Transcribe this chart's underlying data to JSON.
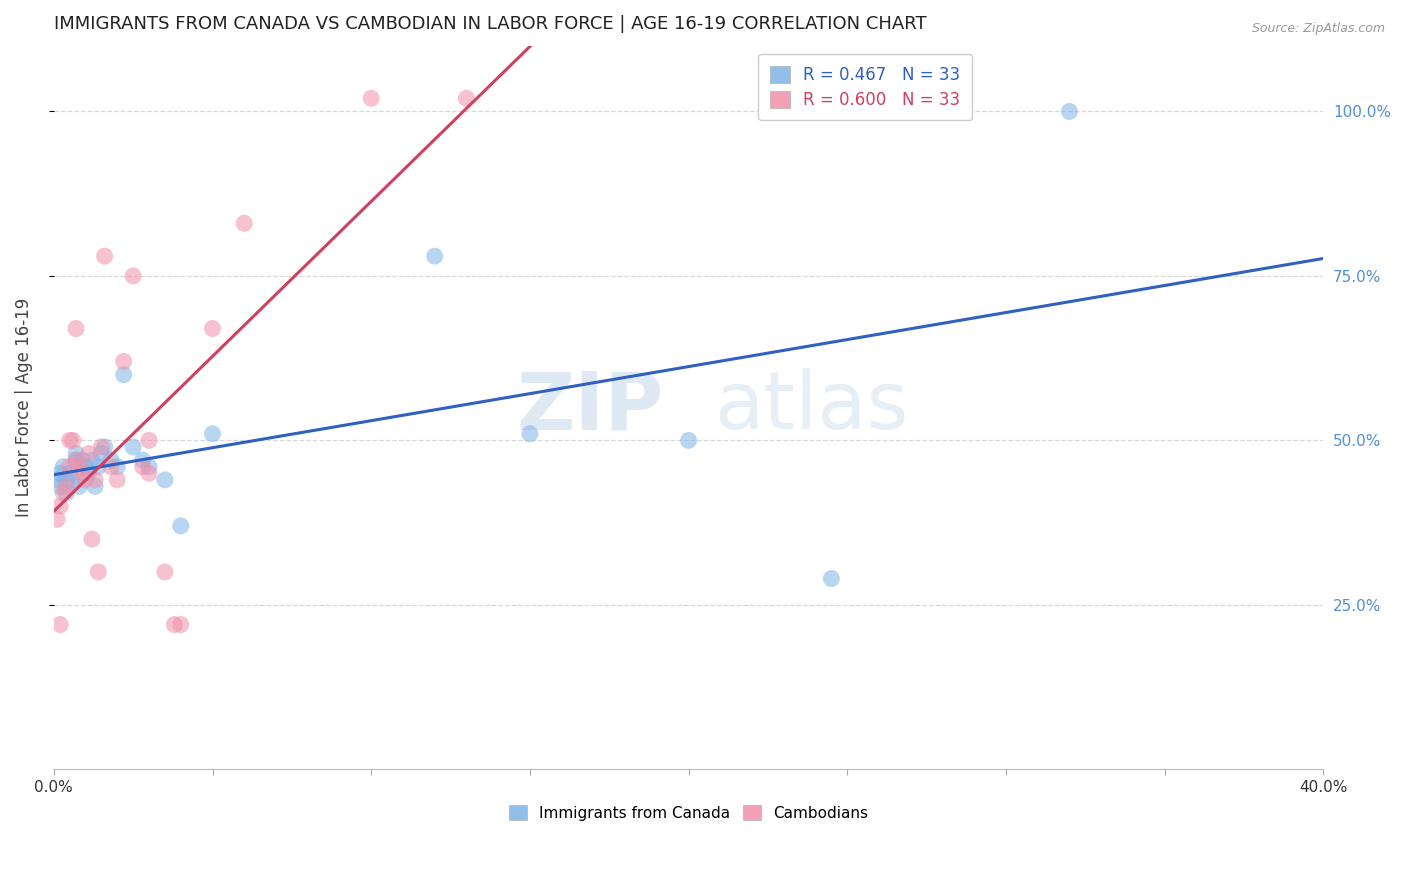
{
  "title": "IMMIGRANTS FROM CANADA VS CAMBODIAN IN LABOR FORCE | AGE 16-19 CORRELATION CHART",
  "source": "Source: ZipAtlas.com",
  "ylabel": "In Labor Force | Age 16-19",
  "xlim": [
    0.0,
    0.4
  ],
  "ylim": [
    0.0,
    1.1
  ],
  "yticks": [
    0.25,
    0.5,
    0.75,
    1.0
  ],
  "ytick_labels": [
    "25.0%",
    "50.0%",
    "75.0%",
    "100.0%"
  ],
  "xticks": [
    0.0,
    0.05,
    0.1,
    0.15,
    0.2,
    0.25,
    0.3,
    0.35,
    0.4
  ],
  "xtick_labels_show": {
    "0.0": "0.0%",
    "0.40": "40.0%"
  },
  "legend_r1": "R = 0.467   N = 33",
  "legend_r2": "R = 0.600   N = 33",
  "watermark": "ZIPatlas",
  "canada_x": [
    0.001,
    0.002,
    0.002,
    0.003,
    0.004,
    0.004,
    0.005,
    0.006,
    0.007,
    0.007,
    0.008,
    0.009,
    0.01,
    0.011,
    0.012,
    0.013,
    0.014,
    0.015,
    0.016,
    0.018,
    0.02,
    0.022,
    0.025,
    0.028,
    0.03,
    0.035,
    0.04,
    0.05,
    0.12,
    0.15,
    0.2,
    0.245,
    0.32
  ],
  "canada_y": [
    0.44,
    0.45,
    0.43,
    0.46,
    0.44,
    0.42,
    0.45,
    0.44,
    0.47,
    0.48,
    0.43,
    0.47,
    0.46,
    0.45,
    0.47,
    0.43,
    0.46,
    0.48,
    0.49,
    0.47,
    0.46,
    0.6,
    0.49,
    0.47,
    0.46,
    0.44,
    0.37,
    0.51,
    0.78,
    0.51,
    0.5,
    0.29,
    1.0
  ],
  "cambodian_x": [
    0.001,
    0.002,
    0.002,
    0.003,
    0.004,
    0.005,
    0.005,
    0.006,
    0.007,
    0.007,
    0.008,
    0.009,
    0.01,
    0.011,
    0.012,
    0.013,
    0.014,
    0.015,
    0.016,
    0.018,
    0.02,
    0.022,
    0.025,
    0.028,
    0.03,
    0.03,
    0.035,
    0.038,
    0.04,
    0.05,
    0.06,
    0.1,
    0.13
  ],
  "cambodian_y": [
    0.38,
    0.4,
    0.22,
    0.42,
    0.43,
    0.46,
    0.5,
    0.5,
    0.47,
    0.67,
    0.46,
    0.45,
    0.44,
    0.48,
    0.35,
    0.44,
    0.3,
    0.49,
    0.78,
    0.46,
    0.44,
    0.62,
    0.75,
    0.46,
    0.45,
    0.5,
    0.3,
    0.22,
    0.22,
    0.67,
    0.83,
    1.02,
    1.02
  ],
  "blue_color": "#7fb3e8",
  "pink_color": "#f090a8",
  "blue_line_color": "#3060c0",
  "pink_line_color": "#d04060",
  "background_color": "#ffffff",
  "grid_color": "#d8d8d8",
  "title_color": "#222222",
  "axis_label_color": "#444444",
  "right_ytick_color": "#5090d0",
  "xtick_label_color": "#333333"
}
